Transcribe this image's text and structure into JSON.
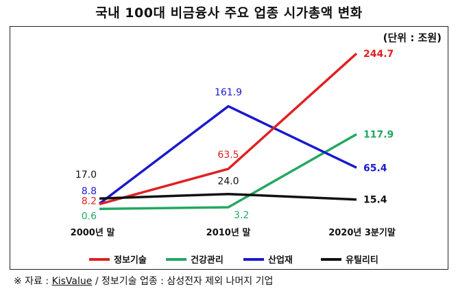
{
  "title": "국내 100대 비금융사 주요 업종 시가총액 변화",
  "unit_label": "(단위 : 조원)",
  "footnote": {
    "prefix": "※ 자료 : ",
    "source": "KisValue",
    "rest": " / 정보기술 업종 : 삼성전자 제외 나머지 기업"
  },
  "chart_data": {
    "type": "line",
    "categories": [
      "2000년 말",
      "2010년 말",
      "2020년 3분기말"
    ],
    "series": [
      {
        "name": "정보기술",
        "color": "#e02020",
        "values": [
          8.2,
          63.5,
          244.7
        ],
        "labels": [
          "8.2",
          "63.5",
          "244.7"
        ]
      },
      {
        "name": "건강관리",
        "color": "#22a860",
        "values": [
          0.6,
          3.2,
          117.9
        ],
        "labels": [
          "0.6",
          "3.2",
          "117.9"
        ]
      },
      {
        "name": "산업재",
        "color": "#1a1acc",
        "values": [
          8.8,
          161.9,
          65.4
        ],
        "labels": [
          "8.8",
          "161.9",
          "65.4"
        ]
      },
      {
        "name": "유틸리티",
        "color": "#111111",
        "values": [
          17.0,
          24.0,
          15.4
        ],
        "labels": [
          "17.0",
          "24.0",
          "15.4"
        ]
      }
    ]
  }
}
